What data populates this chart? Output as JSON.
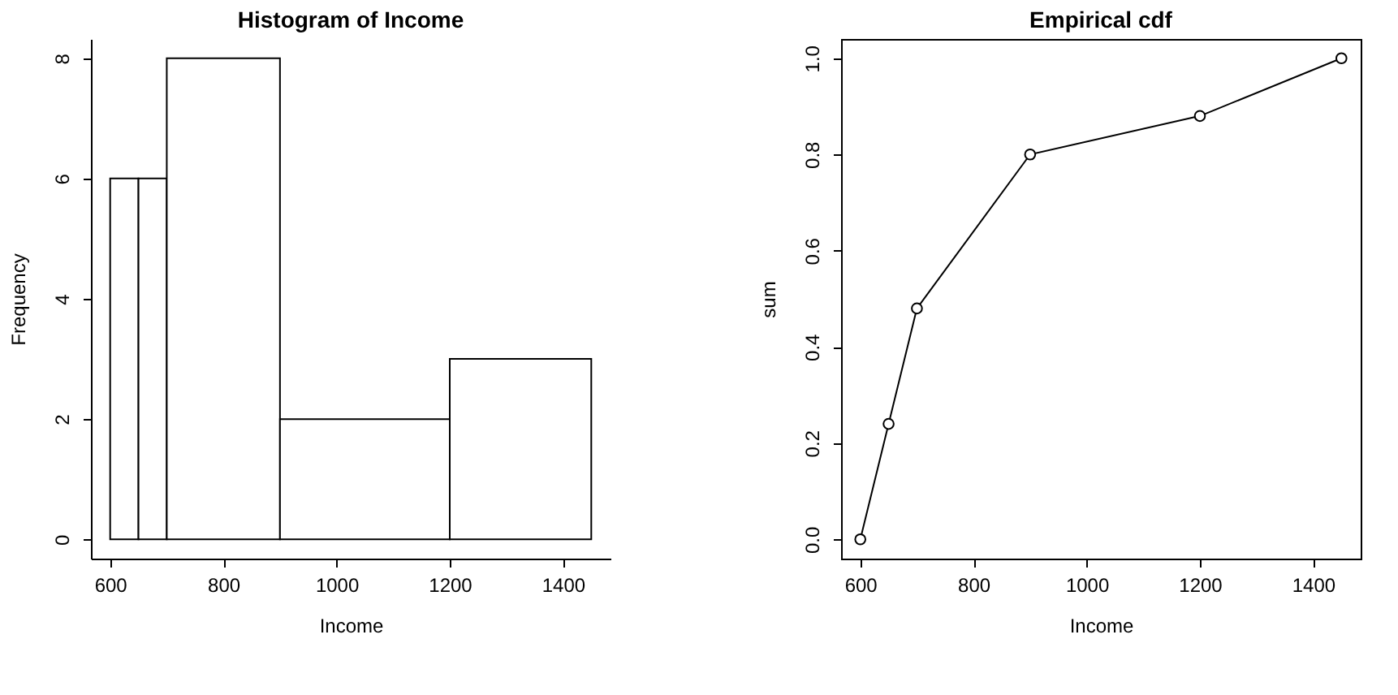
{
  "chart_data": [
    {
      "type": "histogram",
      "title": "Histogram of Income",
      "xlabel": "Income",
      "ylabel": "Frequency",
      "bins": [
        600,
        650,
        700,
        900,
        1200,
        1450
      ],
      "values": [
        6,
        6,
        8,
        2,
        3
      ],
      "color": "#ffffff",
      "xlim": [
        566,
        1484
      ],
      "xticks": [
        600,
        800,
        1000,
        1200,
        1400
      ],
      "ylim": [
        -0.32,
        8.32
      ],
      "yticks": [
        0,
        2,
        4,
        6,
        8
      ],
      "grid": false
    },
    {
      "type": "line",
      "title": "Empirical cdf",
      "xlabel": "Income",
      "ylabel": "sum",
      "x": [
        600,
        650,
        700,
        900,
        1200,
        1450
      ],
      "values": [
        0,
        0.24,
        0.48,
        0.8,
        0.88,
        1.0
      ],
      "color": "#000000",
      "marker": "circle",
      "line_style": "solid",
      "xlim": [
        566,
        1484
      ],
      "xticks": [
        600,
        800,
        1000,
        1200,
        1400
      ],
      "ylim": [
        -0.04,
        1.04
      ],
      "yticks": [
        {
          "value": 0,
          "label": "0.0"
        },
        {
          "value": 0.2,
          "label": "0.2"
        },
        {
          "value": 0.4,
          "label": "0.4"
        },
        {
          "value": 0.6,
          "label": "0.6"
        },
        {
          "value": 0.8,
          "label": "0.8"
        },
        {
          "value": 1.0,
          "label": "1.0"
        }
      ],
      "grid": false
    }
  ]
}
